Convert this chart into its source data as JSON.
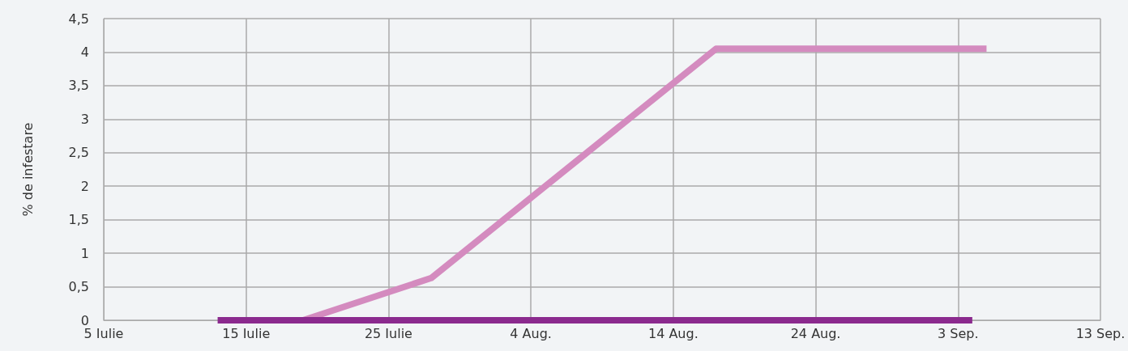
{
  "chart_data": {
    "type": "line",
    "ylabel": "% de infestare",
    "series": [
      {
        "color": "#d48bbf",
        "x": [
          "--07-14",
          "--07-19",
          "--07-28",
          "--08-17",
          "--09-05"
        ],
        "values": [
          0,
          0,
          0.63,
          4.05,
          4.05
        ]
      },
      {
        "color": "#8b2a8e",
        "x": [
          "--07-13",
          "--09-04"
        ],
        "values": [
          0,
          0
        ]
      }
    ],
    "xlim": [
      "--07-05",
      "--09-13"
    ],
    "xticks": [
      {
        "value": "--07-05",
        "label": "5 Iulie"
      },
      {
        "value": "--07-15",
        "label": "15 Iulie"
      },
      {
        "value": "--07-25",
        "label": "25 Iulie"
      },
      {
        "value": "--08-04",
        "label": "4 Aug."
      },
      {
        "value": "--08-14",
        "label": "14 Aug."
      },
      {
        "value": "--08-24",
        "label": "24 Aug."
      },
      {
        "value": "--09-03",
        "label": "3 Sep."
      },
      {
        "value": "--09-13",
        "label": "13 Sep."
      }
    ],
    "ylim": [
      0,
      4.5
    ],
    "yticks": [
      {
        "value": 0,
        "label": "0"
      },
      {
        "value": 0.5,
        "label": "0,5"
      },
      {
        "value": 1,
        "label": "1"
      },
      {
        "value": 1.5,
        "label": "1,5"
      },
      {
        "value": 2,
        "label": "2"
      },
      {
        "value": 2.5,
        "label": "2,5"
      },
      {
        "value": 3,
        "label": "3"
      },
      {
        "value": 3.5,
        "label": "3,5"
      },
      {
        "value": 4,
        "label": "4"
      },
      {
        "value": 4.5,
        "label": "4,5"
      }
    ],
    "grid": true,
    "marker": "none",
    "line_style": "solid"
  }
}
